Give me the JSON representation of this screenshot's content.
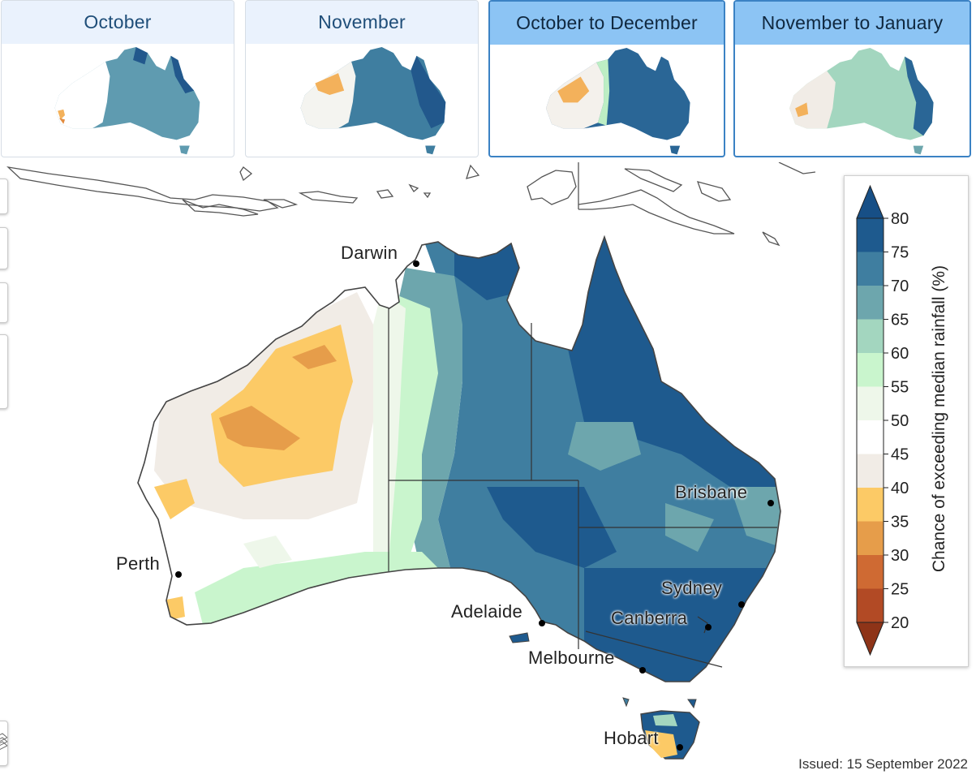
{
  "tabs": [
    {
      "label": "October",
      "active": false
    },
    {
      "label": "November",
      "active": false
    },
    {
      "label": "October to December",
      "active": true
    },
    {
      "label": "November to January",
      "active": false
    }
  ],
  "legend": {
    "title": "Chance of exceeding median rainfall (%)",
    "ticks": [
      "80",
      "75",
      "70",
      "65",
      "60",
      "55",
      "50",
      "45",
      "40",
      "35",
      "30",
      "25",
      "20"
    ],
    "colors": {
      "75-80": "#1e5a8e",
      "70-75": "#3f7ea0",
      "65-70": "#6da6ad",
      "60-65": "#a3d6bf",
      "55-60": "#c9f5cd",
      "50-55": "#eef7ea",
      "45-50": "#ffffff",
      "40-45": "#f1ece6",
      "35-40": "#fcca66",
      "30-35": "#e69d4a",
      "25-30": "#cf6a33",
      "20-25": "#b24a25",
      "above": "#174f86",
      "below": "#8e3418"
    }
  },
  "cities": {
    "darwin": "Darwin",
    "perth": "Perth",
    "brisbane": "Brisbane",
    "adelaide": "Adelaide",
    "sydney": "Sydney",
    "canberra": "Canberra",
    "melbourne": "Melbourne",
    "hobart": "Hobart"
  },
  "issued": "Issued: 15 September 2022"
}
